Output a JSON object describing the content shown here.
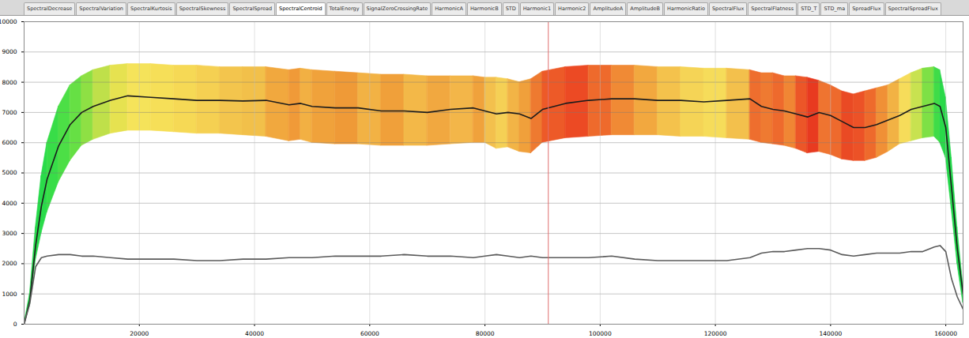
{
  "tabs": [
    "SpectralDecrease",
    "SpectralVariation",
    "SpectralKurtosis",
    "SpectralSkewness",
    "SpectralSpread",
    "SpectralCentroid",
    "TotalEnergy",
    "SignalZeroCrossingRate",
    "HarmonicA",
    "HarmonicB",
    "STD",
    "Harmonic1",
    "Harmonic2",
    "AmplitudeA",
    "AmplitudeB",
    "HarmonicRatio",
    "SpectralFlux",
    "SpectralFlatness",
    "STD_T",
    "STD_ma",
    "SpreadFlux",
    "SpectralSpreadFlux"
  ],
  "active_tab": "SpectralCentroid",
  "chart_data": {
    "type": "line",
    "x": [
      0,
      1000,
      2000,
      3000,
      4000,
      6000,
      8000,
      10000,
      12000,
      15000,
      18000,
      22000,
      26000,
      30000,
      34000,
      38000,
      42000,
      46000,
      48000,
      50000,
      54000,
      58000,
      62000,
      66000,
      70000,
      74000,
      78000,
      80000,
      82000,
      84000,
      86000,
      88000,
      90000,
      94000,
      98000,
      102000,
      106000,
      110000,
      114000,
      118000,
      122000,
      126000,
      128000,
      130000,
      132000,
      134000,
      136000,
      138000,
      140000,
      142000,
      144000,
      146000,
      148000,
      150000,
      152000,
      154000,
      156000,
      158000,
      159000,
      160000,
      161000,
      162000,
      163000
    ],
    "band": {
      "upper": [
        0,
        1000,
        3200,
        4900,
        6000,
        7200,
        7900,
        8200,
        8400,
        8550,
        8600,
        8600,
        8550,
        8550,
        8500,
        8500,
        8500,
        8400,
        8450,
        8400,
        8350,
        8300,
        8250,
        8250,
        8200,
        8200,
        8200,
        8150,
        8150,
        8100,
        8000,
        8100,
        8350,
        8500,
        8550,
        8550,
        8550,
        8500,
        8500,
        8450,
        8450,
        8400,
        8300,
        8300,
        8200,
        8200,
        8150,
        8050,
        7900,
        7700,
        7600,
        7700,
        7800,
        7900,
        8100,
        8300,
        8450,
        8500,
        8400,
        7500,
        5500,
        3200,
        1300
      ],
      "lower": [
        0,
        600,
        2100,
        3000,
        3700,
        4700,
        5400,
        5900,
        6100,
        6300,
        6400,
        6400,
        6350,
        6300,
        6300,
        6250,
        6200,
        6050,
        6100,
        6000,
        5950,
        5950,
        5900,
        5900,
        5900,
        5950,
        6000,
        6000,
        5800,
        5850,
        5700,
        5650,
        6000,
        6150,
        6200,
        6250,
        6250,
        6250,
        6200,
        6200,
        6150,
        6100,
        6000,
        5950,
        5900,
        5800,
        5650,
        5700,
        5600,
        5450,
        5400,
        5400,
        5500,
        5700,
        5950,
        6050,
        6150,
        6200,
        6000,
        5500,
        3800,
        2000,
        700
      ],
      "colors": [
        "#1fd84a",
        "#22d94a",
        "#26da4a",
        "#2adb4a",
        "#38dd48",
        "#4cdf46",
        "#66e044",
        "#8ee044",
        "#bfe04a",
        "#e6e250",
        "#f5e35a",
        "#f6df58",
        "#f6d955",
        "#f5d052",
        "#f3c54d",
        "#f2c04a",
        "#f1a83e",
        "#f09a38",
        "#f2b043",
        "#f0a23b",
        "#ef9a37",
        "#f2b244",
        "#f0a03a",
        "#f3b848",
        "#f1a840",
        "#f3b649",
        "#f0a23c",
        "#f3c04d",
        "#f5d055",
        "#f2b446",
        "#f0a03b",
        "#ee7a30",
        "#ed5a28",
        "#ec4a24",
        "#ee6a2c",
        "#f08a35",
        "#f2a83f",
        "#f4c24c",
        "#f5d456",
        "#f6dc5a",
        "#f3c04c",
        "#ee6e2e",
        "#ef7a31",
        "#ee6a2d",
        "#f08634",
        "#ec5628",
        "#e83a20",
        "#ef7430",
        "#ee6a2d",
        "#ea4a24",
        "#ec5227",
        "#ee6a2c",
        "#f09036",
        "#f2b244",
        "#f6dc5a",
        "#c8e250",
        "#7ee046",
        "#3fdc48",
        "#2ad94a",
        "#24d84a",
        "#20d84a",
        "#1ed84a"
      ]
    },
    "series": [
      {
        "color": "#1c1c1c",
        "values": [
          0,
          800,
          2600,
          3900,
          4800,
          5900,
          6600,
          7000,
          7200,
          7400,
          7550,
          7500,
          7450,
          7400,
          7400,
          7380,
          7400,
          7250,
          7300,
          7200,
          7150,
          7150,
          7050,
          7050,
          7000,
          7100,
          7150,
          7050,
          6950,
          7000,
          6950,
          6800,
          7100,
          7300,
          7400,
          7450,
          7450,
          7400,
          7400,
          7350,
          7400,
          7450,
          7200,
          7100,
          7050,
          6950,
          6850,
          7000,
          6900,
          6700,
          6500,
          6500,
          6600,
          6750,
          6900,
          7100,
          7200,
          7300,
          7200,
          6500,
          4500,
          2500,
          1000
        ]
      },
      {
        "color": "#5a5a5a",
        "values": [
          0,
          700,
          1900,
          2200,
          2250,
          2300,
          2300,
          2250,
          2250,
          2200,
          2150,
          2150,
          2150,
          2100,
          2100,
          2150,
          2150,
          2200,
          2200,
          2200,
          2250,
          2250,
          2250,
          2300,
          2250,
          2250,
          2200,
          2250,
          2300,
          2250,
          2200,
          2250,
          2200,
          2200,
          2200,
          2250,
          2150,
          2100,
          2100,
          2100,
          2100,
          2200,
          2350,
          2400,
          2400,
          2450,
          2500,
          2500,
          2450,
          2300,
          2250,
          2300,
          2350,
          2350,
          2350,
          2400,
          2400,
          2550,
          2600,
          2400,
          1500,
          900,
          500
        ]
      }
    ],
    "cursor_x": 91000,
    "xlim": [
      0,
      163000
    ],
    "xticks": [
      20000,
      40000,
      60000,
      80000,
      100000,
      120000,
      140000,
      160000
    ],
    "ylim": [
      0,
      10000
    ],
    "yticks": [
      0,
      1000,
      2000,
      3000,
      4000,
      5000,
      6000,
      7000,
      8000,
      9000,
      10000
    ],
    "grid": true
  }
}
